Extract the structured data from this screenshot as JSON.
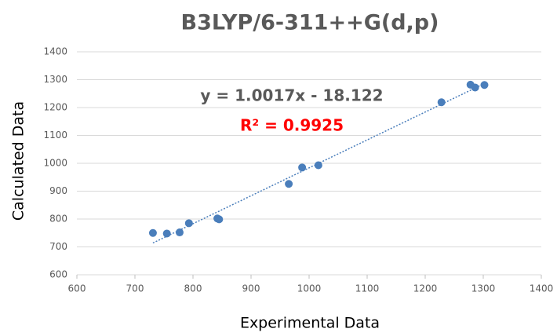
{
  "chart_data": {
    "type": "scatter",
    "title": "B3LYP/6-311++G(d,p)",
    "x_label": "Experimental Data",
    "y_label": "Calculated Data",
    "series": [
      {
        "name": "Calculated Data",
        "color": "#4a7ebb",
        "x": [
          731,
          755,
          777,
          793,
          842,
          845,
          965,
          988,
          1016,
          1228,
          1278,
          1286,
          1302
        ],
        "values": [
          750,
          748,
          752,
          785,
          802,
          799,
          926,
          985,
          993,
          1219,
          1282,
          1272,
          1281
        ]
      }
    ],
    "trendline": {
      "slope": 1.0017,
      "intercept": -18.122,
      "equation": "y = 1.0017x - 18.122",
      "r_squared_label": "R² = 0.9925"
    },
    "xlim": [
      600,
      1400
    ],
    "xticks": [
      600,
      700,
      800,
      900,
      1000,
      1100,
      1200,
      1300,
      1400
    ],
    "ylim": [
      600,
      1400
    ],
    "yticks": [
      600,
      700,
      800,
      900,
      1000,
      1100,
      1200,
      1300,
      1400
    ],
    "grid": true
  }
}
